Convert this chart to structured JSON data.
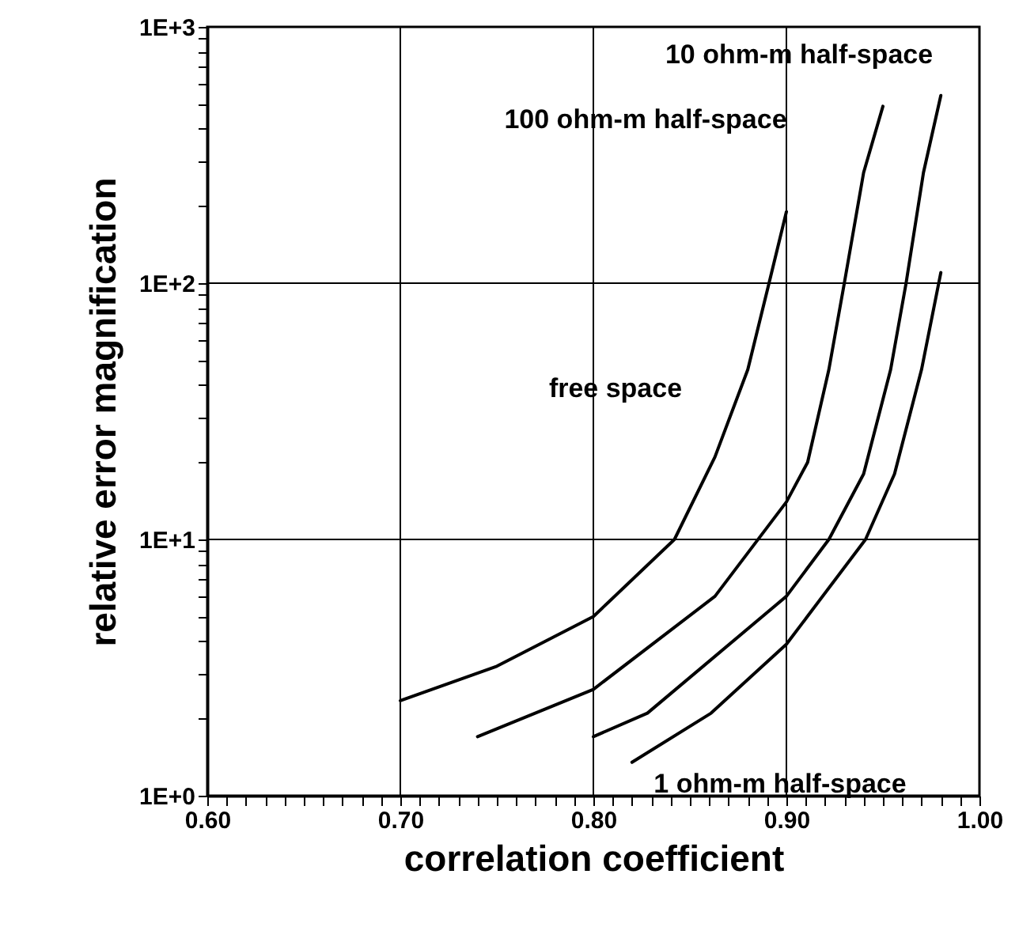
{
  "chart_data": {
    "type": "line",
    "xlabel": "correlation coefficient",
    "ylabel": "relative error magnification",
    "log": "y",
    "grid": true,
    "marker": "none",
    "line_style": "solid",
    "xlim": [
      0.6,
      1.0
    ],
    "xticks": [
      {
        "value": 0.6,
        "label": "0.60"
      },
      {
        "value": 0.61,
        "label": null
      },
      {
        "value": 0.62,
        "label": null
      },
      {
        "value": 0.63,
        "label": null
      },
      {
        "value": 0.64,
        "label": null
      },
      {
        "value": 0.65,
        "label": null
      },
      {
        "value": 0.66,
        "label": null
      },
      {
        "value": 0.67,
        "label": null
      },
      {
        "value": 0.68,
        "label": null
      },
      {
        "value": 0.69,
        "label": null
      },
      {
        "value": 0.7,
        "label": "0.70"
      },
      {
        "value": 0.71,
        "label": null
      },
      {
        "value": 0.72,
        "label": null
      },
      {
        "value": 0.73,
        "label": null
      },
      {
        "value": 0.74,
        "label": null
      },
      {
        "value": 0.75,
        "label": null
      },
      {
        "value": 0.76,
        "label": null
      },
      {
        "value": 0.77,
        "label": null
      },
      {
        "value": 0.78,
        "label": null
      },
      {
        "value": 0.79,
        "label": null
      },
      {
        "value": 0.8,
        "label": "0.80"
      },
      {
        "value": 0.81,
        "label": null
      },
      {
        "value": 0.82,
        "label": null
      },
      {
        "value": 0.83,
        "label": null
      },
      {
        "value": 0.84,
        "label": null
      },
      {
        "value": 0.85,
        "label": null
      },
      {
        "value": 0.86,
        "label": null
      },
      {
        "value": 0.87,
        "label": null
      },
      {
        "value": 0.88,
        "label": null
      },
      {
        "value": 0.89,
        "label": null
      },
      {
        "value": 0.9,
        "label": "0.90"
      },
      {
        "value": 0.91,
        "label": null
      },
      {
        "value": 0.92,
        "label": null
      },
      {
        "value": 0.93,
        "label": null
      },
      {
        "value": 0.94,
        "label": null
      },
      {
        "value": 0.95,
        "label": null
      },
      {
        "value": 0.96,
        "label": null
      },
      {
        "value": 0.97,
        "label": null
      },
      {
        "value": 0.98,
        "label": null
      },
      {
        "value": 0.99,
        "label": null
      },
      {
        "value": 1.0,
        "label": "1.00"
      }
    ],
    "ylim": [
      1,
      1000
    ],
    "yticks": [
      {
        "value": 1,
        "label": "1E+0"
      },
      {
        "value": 2,
        "label": null
      },
      {
        "value": 3,
        "label": null
      },
      {
        "value": 4,
        "label": null
      },
      {
        "value": 5,
        "label": null
      },
      {
        "value": 6,
        "label": null
      },
      {
        "value": 7,
        "label": null
      },
      {
        "value": 8,
        "label": null
      },
      {
        "value": 9,
        "label": null
      },
      {
        "value": 10,
        "label": "1E+1"
      },
      {
        "value": 20,
        "label": null
      },
      {
        "value": 30,
        "label": null
      },
      {
        "value": 40,
        "label": null
      },
      {
        "value": 50,
        "label": null
      },
      {
        "value": 60,
        "label": null
      },
      {
        "value": 70,
        "label": null
      },
      {
        "value": 80,
        "label": null
      },
      {
        "value": 90,
        "label": null
      },
      {
        "value": 100,
        "label": "1E+2"
      },
      {
        "value": 200,
        "label": null
      },
      {
        "value": 300,
        "label": null
      },
      {
        "value": 400,
        "label": null
      },
      {
        "value": 500,
        "label": null
      },
      {
        "value": 600,
        "label": null
      },
      {
        "value": 700,
        "label": null
      },
      {
        "value": 800,
        "label": null
      },
      {
        "value": 900,
        "label": null
      },
      {
        "value": 1000,
        "label": "1E+3"
      }
    ],
    "series": [
      {
        "color": "#000000",
        "x": [
          0.7,
          0.75,
          0.8,
          0.842,
          0.863,
          0.88,
          0.891,
          0.9
        ],
        "values": [
          2.35,
          3.2,
          5.0,
          10,
          21,
          46,
          100,
          190
        ]
      },
      {
        "color": "#000000",
        "x": [
          0.74,
          0.8,
          0.863,
          0.9,
          0.911,
          0.922,
          0.93,
          0.94,
          0.95
        ],
        "values": [
          1.7,
          2.6,
          6.0,
          14,
          20,
          46,
          100,
          270,
          490
        ]
      },
      {
        "color": "#000000",
        "x": [
          0.8,
          0.828,
          0.9,
          0.922,
          0.94,
          0.954,
          0.962,
          0.971,
          0.98
        ],
        "values": [
          1.7,
          2.1,
          6.0,
          10,
          18,
          46,
          100,
          270,
          540
        ]
      },
      {
        "color": "#000000",
        "x": [
          0.82,
          0.861,
          0.9,
          0.941,
          0.956,
          0.97,
          0.98
        ],
        "values": [
          1.35,
          2.1,
          3.9,
          10,
          18,
          46,
          110
        ]
      }
    ],
    "annotations": [
      "10 ohm-m half-space",
      "100 ohm-m half-space",
      "free space",
      "1 ohm-m half-space"
    ]
  }
}
